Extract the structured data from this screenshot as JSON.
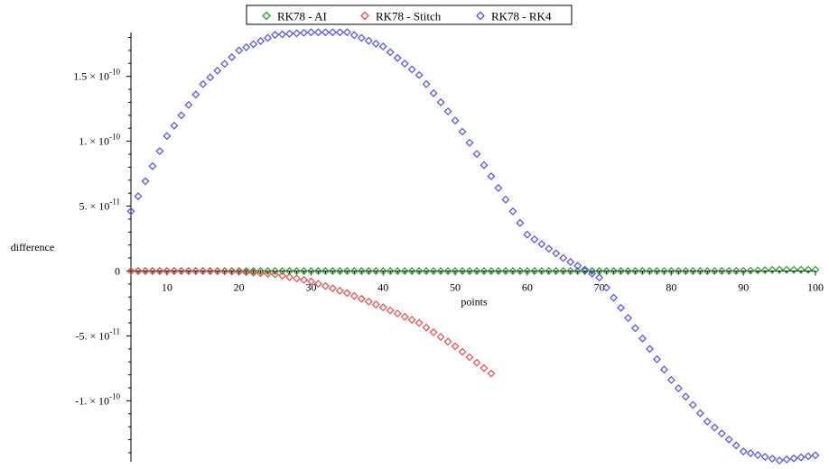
{
  "chart_data": {
    "type": "scatter",
    "title": "",
    "xlabel": "points",
    "ylabel": "difference",
    "xlim": [
      5,
      100
    ],
    "ylim": [
      -1.47e-10,
      1.88e-10
    ],
    "grid": false,
    "legend_position": "top-center",
    "x_ticks": [
      10,
      20,
      30,
      40,
      50,
      60,
      70,
      80,
      90,
      100
    ],
    "x_tick_labels": [
      "10",
      "20",
      "30",
      "40",
      "50",
      "60",
      "70",
      "80",
      "90",
      "100"
    ],
    "y_ticks": [
      {
        "value": 1.5e-10,
        "mant": "1.5",
        "exp": "-10"
      },
      {
        "value": 1e-10,
        "mant": "1.",
        "exp": "-10"
      },
      {
        "value": 5e-11,
        "mant": "5.",
        "exp": "-11"
      },
      {
        "value": 0,
        "mant": "0",
        "exp": ""
      },
      {
        "value": -5e-11,
        "mant": "-5.",
        "exp": "-11"
      },
      {
        "value": -1e-10,
        "mant": "-1.",
        "exp": "-10"
      }
    ],
    "marker": "diamond",
    "series": [
      {
        "name": "RK78 - AI",
        "color": "#2e9e2e",
        "x": [
          5,
          10,
          15,
          20,
          25,
          30,
          35,
          40,
          45,
          50,
          55,
          60,
          65,
          70,
          75,
          80,
          85,
          90,
          95,
          100
        ],
        "y": [
          0,
          0,
          0,
          0,
          0,
          0,
          0,
          0,
          0,
          0,
          0,
          0,
          0,
          0,
          0,
          0,
          0,
          1e-13,
          1e-12,
          1e-12
        ]
      },
      {
        "name": "RK78 - Stitch",
        "color": "#e84a4a",
        "x": [
          5,
          10,
          15,
          20,
          25,
          30,
          35,
          40,
          45,
          50,
          55
        ],
        "y": [
          0,
          0,
          0,
          -5e-13,
          -2.5e-12,
          -8e-12,
          -1.7e-11,
          -2.8e-11,
          -4e-11,
          -5.8e-11,
          -7.9e-11
        ]
      },
      {
        "name": "RK78 - RK4",
        "color": "#4f4fe8",
        "x": [
          5,
          10,
          15,
          20,
          25,
          30,
          35,
          40,
          45,
          50,
          55,
          60,
          65,
          70,
          75,
          80,
          85,
          90,
          95,
          100
        ],
        "y": [
          4.6e-11,
          1.04e-10,
          1.44e-10,
          1.7e-10,
          1.82e-10,
          1.84e-10,
          1.84e-10,
          1.73e-10,
          1.51e-10,
          1.16e-10,
          7.3e-11,
          2.8e-11,
          1e-11,
          -5e-12,
          -4.4e-11,
          -8.4e-11,
          -1.16e-10,
          -1.39e-10,
          -1.46e-10,
          -1.42e-10
        ]
      }
    ]
  }
}
